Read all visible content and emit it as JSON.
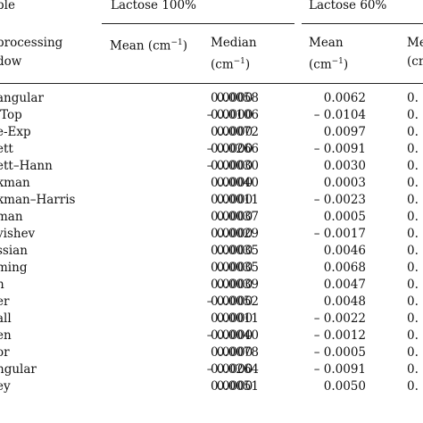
{
  "header": {
    "sample_label": "ple",
    "processing_label_line1": "processing",
    "processing_label_line2": "dow",
    "group1": "Lactose 100%",
    "group2": "Lactose 60%",
    "g1_mean_line1": "Mean (cm",
    "g1_mean_sup": "−1",
    "g1_mean_close": ")",
    "g1_median_line1": "Median",
    "g1_median_line2": "(cm",
    "g1_median_sup": "−1",
    "g1_median_close": ")",
    "g2_mean_line1": "Mean",
    "g2_mean_line2": "(cm",
    "g2_mean_sup": "−1",
    "g2_mean_close": ")",
    "g2_median_line1": "Me",
    "g2_median_line2": "(cm"
  },
  "rows": [
    {
      "name": "angular",
      "mean100": "0.0058",
      "median100": "0.0000",
      "mean60": "0.0062",
      "median60": "0."
    },
    {
      "name": "-Top",
      "mean100": "– 0.0106",
      "median100": "0.0000",
      "mean60": "– 0.0104",
      "median60": "0."
    },
    {
      "name": "e-Exp",
      "mean100": "0.0072",
      "median100": "0.0000",
      "mean60": "0.0097",
      "median60": "0."
    },
    {
      "name": "ett",
      "mean100": "– 0.0266",
      "median100": "0.0000",
      "mean60": "– 0.0091",
      "median60": "0."
    },
    {
      "name": "ett–Hann",
      "mean100": "– 0.0030",
      "median100": "0.0000",
      "mean60": "0.0030",
      "median60": "0."
    },
    {
      "name": "kman",
      "mean100": "0.0040",
      "median100": "0.0000",
      "mean60": "0.0003",
      "median60": "0."
    },
    {
      "name": "kman–Harris",
      "mean100": "0.0011",
      "median100": "0.0000",
      "mean60": "– 0.0023",
      "median60": "0."
    },
    {
      "name": "man",
      "mean100": "0.0037",
      "median100": "0.0000",
      "mean60": "0.0005",
      "median60": "0."
    },
    {
      "name": "vishev",
      "mean100": "0.0029",
      "median100": "0.0000",
      "mean60": "– 0.0017",
      "median60": "0."
    },
    {
      "name": "ssian",
      "mean100": "0.0035",
      "median100": "0.0000",
      "mean60": "0.0046",
      "median60": "0."
    },
    {
      "name": "ming",
      "mean100": "0.0035",
      "median100": "0.0000",
      "mean60": "0.0068",
      "median60": "0."
    },
    {
      "name": "n",
      "mean100": "0.0039",
      "median100": "0.0000",
      "mean60": "0.0047",
      "median60": "0."
    },
    {
      "name": "er",
      "mean100": "– 0.0052",
      "median100": "0.0000",
      "mean60": "0.0048",
      "median60": "0."
    },
    {
      "name": "all",
      "mean100": "0.0011",
      "median100": "0.0000",
      "mean60": "– 0.0022",
      "median60": "0."
    },
    {
      "name": "en",
      "mean100": "– 0.0040",
      "median100": "0.0000",
      "mean60": "– 0.0012",
      "median60": "0."
    },
    {
      "name": "or",
      "mean100": "0.0078",
      "median100": "0.0000",
      "mean60": "– 0.0005",
      "median60": "0."
    },
    {
      "name": "ngular",
      "mean100": "– 0.0264",
      "median100": "0.0000",
      "mean60": "– 0.0091",
      "median60": "0."
    },
    {
      "name": "ey",
      "mean100": "0.0051",
      "median100": "0.0000",
      "mean60": "0.0050",
      "median60": "0."
    }
  ]
}
